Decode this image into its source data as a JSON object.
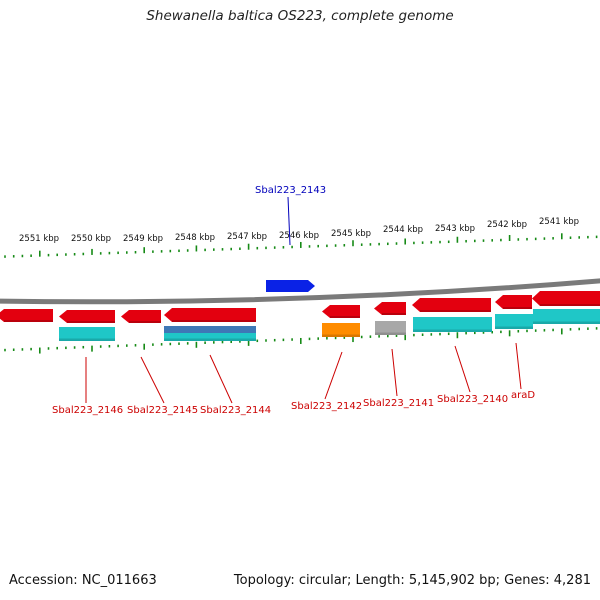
{
  "title": "Shewanella baltica OS223, complete genome",
  "footer": {
    "accession": "Accession: NC_011663",
    "summary": "Topology: circular; Length: 5,145,902 bp; Genes: 4,281"
  },
  "scale_labels": [
    "2551 kbp",
    "2550 kbp",
    "2549 kbp",
    "2548 kbp",
    "2547 kbp",
    "2546 kbp",
    "2545 kbp",
    "2544 kbp",
    "2543 kbp",
    "2542 kbp",
    "2541 kbp"
  ],
  "colors": {
    "backbone": "#7a7a7a",
    "gene": "#e3000f",
    "cds": "#1fc7c7",
    "cds_blue": "#3e78b6",
    "orange": "#ff8c00",
    "gray": "#a8a8a8",
    "selected": "#0a22e6",
    "tick": "#168a16",
    "label_red": "#cc0000",
    "label_blue": "#0000bb"
  },
  "genes": [
    {
      "label": "Sbal223_2143",
      "color_key": "selected",
      "label_color": "label_blue"
    },
    {
      "label": "Sbal223_2146",
      "color_key": "gene",
      "label_color": "label_red"
    },
    {
      "label": "Sbal223_2145",
      "color_key": "gene",
      "label_color": "label_red"
    },
    {
      "label": "Sbal223_2144",
      "color_key": "gene",
      "label_color": "label_red"
    },
    {
      "label": "Sbal223_2142",
      "color_key": "gene",
      "label_color": "label_red"
    },
    {
      "label": "Sbal223_2141",
      "color_key": "gene",
      "label_color": "label_red"
    },
    {
      "label": "Sbal223_2140",
      "color_key": "gene",
      "label_color": "label_red"
    },
    {
      "label": "araD",
      "color_key": "gene",
      "label_color": "label_red"
    }
  ]
}
